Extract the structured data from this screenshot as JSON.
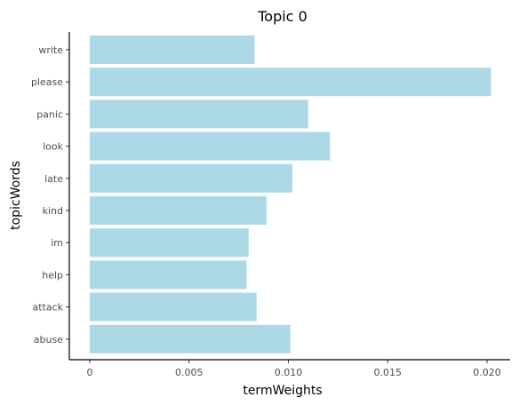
{
  "chart_data": {
    "type": "bar",
    "orientation": "horizontal",
    "title": "Topic 0",
    "xlabel": "termWeights",
    "ylabel": "topicWords",
    "categories": [
      "write",
      "please",
      "panic",
      "look",
      "late",
      "kind",
      "im",
      "help",
      "attack",
      "abuse"
    ],
    "values": [
      0.0083,
      0.0202,
      0.011,
      0.0121,
      0.0102,
      0.0089,
      0.008,
      0.0079,
      0.0084,
      0.0101
    ],
    "xlim": [
      0,
      0.0212
    ],
    "xticks": [
      0,
      0.005,
      0.01,
      0.015,
      0.02
    ],
    "xtick_labels": [
      "0",
      "0.005",
      "0.010",
      "0.015",
      "0.020"
    ],
    "bar_color": "#add8e6",
    "grid": false,
    "legend": "none"
  }
}
